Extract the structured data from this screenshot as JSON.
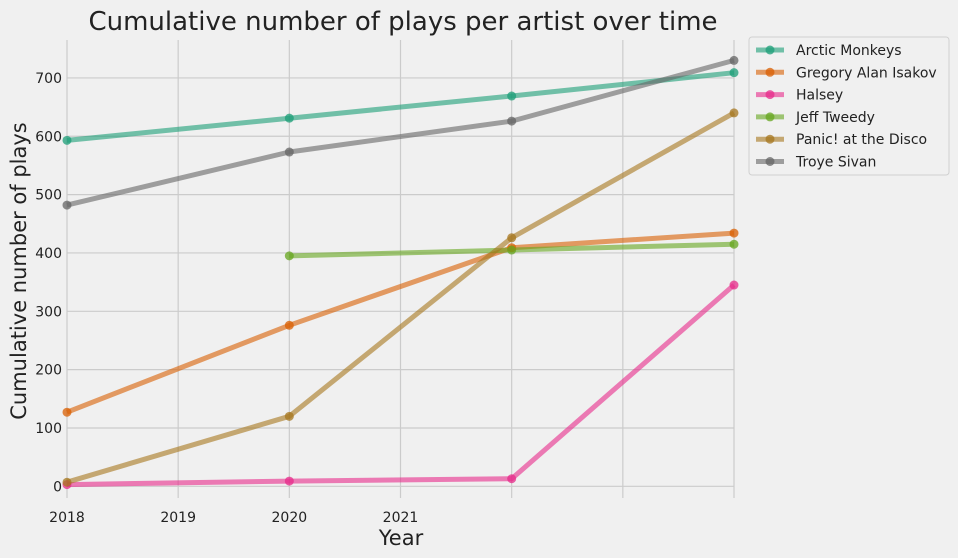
{
  "chart_data": {
    "type": "line",
    "title": "Cumulative number of plays per artist over time",
    "xlabel": "Year",
    "ylabel": "Cumulative number of plays",
    "x": [
      2018,
      2020,
      2022,
      2024
    ],
    "xlim": [
      2018,
      2024
    ],
    "ylim": [
      -20,
      765
    ],
    "x_ticks": [
      2018,
      2019,
      2020,
      2021,
      2022,
      2023,
      2024
    ],
    "x_tick_labels": [
      "2018",
      "2019",
      "2020",
      "2021",
      "",
      "",
      ""
    ],
    "y_ticks": [
      0,
      100,
      200,
      300,
      400,
      500,
      600,
      700
    ],
    "grid": true,
    "legend_position": "outside-top-right",
    "series": [
      {
        "name": "Arctic Monkeys",
        "color": "#1b9e77",
        "x": [
          2018,
          2020,
          2022,
          2024
        ],
        "values": [
          593,
          631,
          669,
          709
        ]
      },
      {
        "name": "Gregory Alan Isakov",
        "color": "#d95f02",
        "x": [
          2018,
          2020,
          2022,
          2024
        ],
        "values": [
          127,
          276,
          409,
          434
        ]
      },
      {
        "name": "Halsey",
        "color": "#e7298a",
        "x": [
          2018,
          2020,
          2022,
          2024
        ],
        "values": [
          3,
          9,
          13,
          345
        ]
      },
      {
        "name": "Jeff Tweedy",
        "color": "#66a61e",
        "x": [
          2020,
          2022,
          2024
        ],
        "values": [
          395,
          405,
          415
        ]
      },
      {
        "name": "Panic! at the Disco",
        "color": "#a6761d",
        "x": [
          2018,
          2020,
          2022,
          2024
        ],
        "values": [
          7,
          120,
          426,
          640
        ]
      },
      {
        "name": "Troye Sivan",
        "color": "#666666",
        "x": [
          2018,
          2020,
          2022,
          2024
        ],
        "values": [
          482,
          573,
          626,
          730
        ]
      }
    ]
  }
}
